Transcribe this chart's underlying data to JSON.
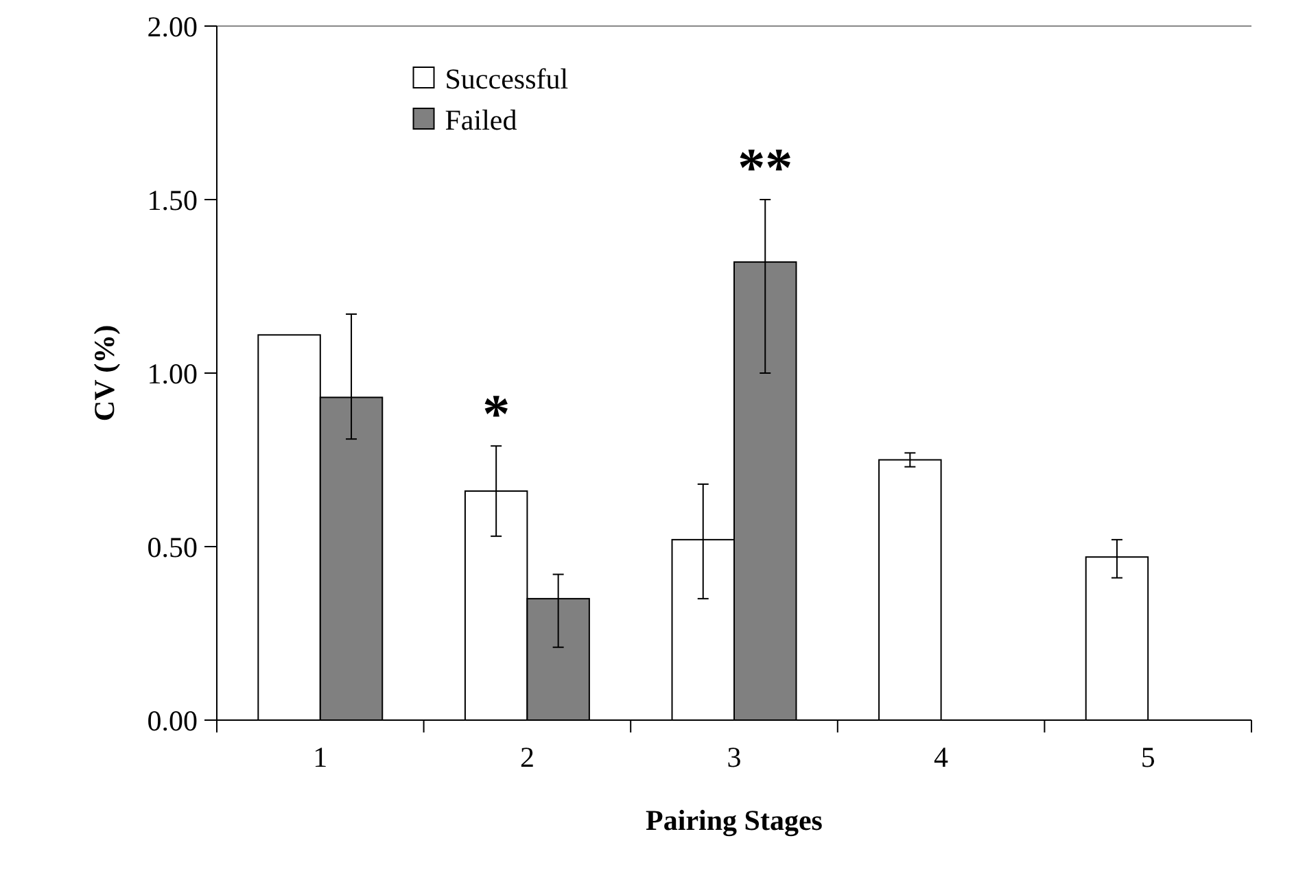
{
  "chart_data": {
    "type": "bar",
    "xlabel": "Pairing Stages",
    "ylabel": "CV (%)",
    "categories": [
      "1",
      "2",
      "3",
      "4",
      "5"
    ],
    "series": [
      {
        "name": "Successful",
        "color": "#ffffff",
        "values": [
          1.11,
          0.66,
          0.52,
          0.75,
          0.47
        ],
        "errors": [
          null,
          [
            0.53,
            0.79
          ],
          [
            0.35,
            0.68
          ],
          [
            0.73,
            0.77
          ],
          [
            0.41,
            0.52
          ]
        ]
      },
      {
        "name": "Failed",
        "color": "#808080",
        "values": [
          0.93,
          0.35,
          1.32,
          null,
          null
        ],
        "errors": [
          [
            0.81,
            1.17
          ],
          [
            0.21,
            0.42
          ],
          [
            1.0,
            1.5
          ],
          null,
          null
        ]
      }
    ],
    "ylim": [
      0,
      2
    ],
    "yticks": [
      {
        "value": 0,
        "label": "0.00"
      },
      {
        "value": 0.5,
        "label": "0.50"
      },
      {
        "value": 1,
        "label": "1.00"
      },
      {
        "value": 1.5,
        "label": "1.50"
      },
      {
        "value": 2,
        "label": "2.00"
      }
    ],
    "annotations": [
      "*",
      "**"
    ],
    "legend": "top",
    "grid": false
  }
}
